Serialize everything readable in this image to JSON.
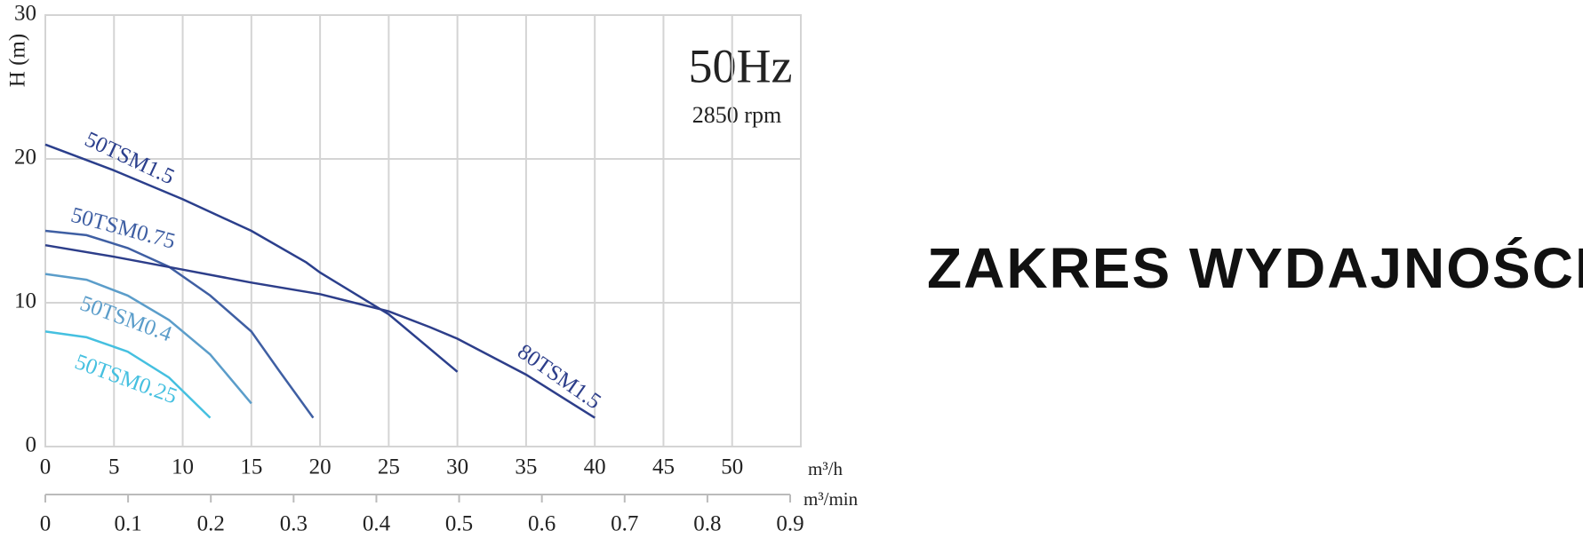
{
  "chart_data": {
    "type": "line",
    "annotations": [
      "50Hz",
      "2850 rpm"
    ],
    "ylabel": "H (m)",
    "xlabel": "m³/h",
    "x2label": "m³/min",
    "xlim": [
      0,
      55
    ],
    "xticks": [
      0,
      5,
      10,
      15,
      20,
      25,
      30,
      35,
      40,
      45,
      50
    ],
    "x2lim": [
      0,
      0.9
    ],
    "x2ticks": [
      0,
      0.1,
      0.2,
      0.3,
      0.4,
      0.5,
      0.6,
      0.7,
      0.8,
      0.9
    ],
    "ylim": [
      0,
      30
    ],
    "yticks": [
      0,
      10,
      20,
      30
    ],
    "grid": true,
    "series": [
      {
        "name": "50TSM1.5",
        "color": "#2b3f8c",
        "x": [
          0,
          5,
          10,
          15,
          19,
          20,
          25,
          30
        ],
        "values": [
          21,
          19.2,
          17.2,
          15,
          12.8,
          12.1,
          9.2,
          5.2
        ]
      },
      {
        "name": "50TSM0.75",
        "color": "#3f5fa3",
        "x": [
          0,
          3,
          6,
          9,
          12,
          15,
          17,
          19.5
        ],
        "values": [
          15,
          14.7,
          13.8,
          12.5,
          10.5,
          8,
          5.3,
          2
        ]
      },
      {
        "name": "50TSM0.4",
        "color": "#5b9dca",
        "x": [
          0,
          3,
          6,
          9,
          12,
          15
        ],
        "values": [
          12,
          11.6,
          10.5,
          8.8,
          6.4,
          3
        ]
      },
      {
        "name": "50TSM0.25",
        "color": "#45c0e0",
        "x": [
          0,
          3,
          6,
          9,
          12
        ],
        "values": [
          8,
          7.6,
          6.6,
          4.8,
          2
        ]
      },
      {
        "name": "80TSM1.5",
        "color": "#2d3e8a",
        "x": [
          0,
          5,
          10,
          15,
          20,
          25,
          28,
          30,
          35,
          40
        ],
        "values": [
          14,
          13.2,
          12.3,
          11.4,
          10.6,
          9.4,
          8.3,
          7.5,
          5,
          2
        ]
      }
    ]
  },
  "heading": "ZAKRES WYDAJNOŚCI"
}
